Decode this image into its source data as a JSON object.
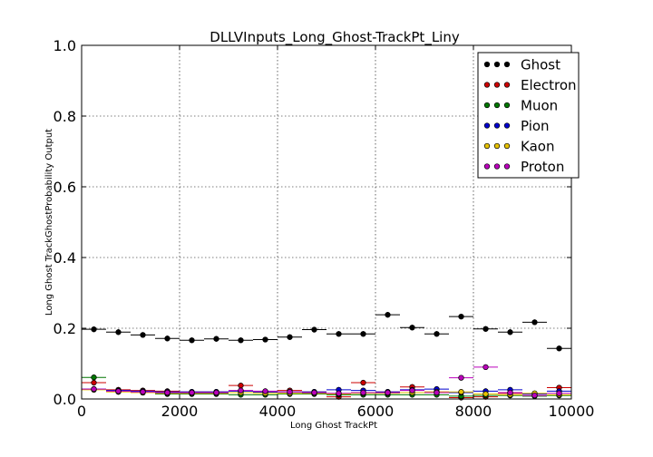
{
  "chart_data": {
    "type": "scatter",
    "title": "DLLVInputs_Long_Ghost-TrackPt_Liny",
    "xlabel": "Long Ghost TrackPt",
    "ylabel": "Long Ghost TrackGhostProbability Output",
    "xlim": [
      0,
      10000
    ],
    "ylim": [
      0,
      1.0
    ],
    "x_ticks": [
      "0",
      "2000",
      "4000",
      "6000",
      "8000",
      "10000"
    ],
    "y_ticks": [
      "0.0",
      "0.2",
      "0.4",
      "0.6",
      "0.8",
      "1.0"
    ],
    "grid": true,
    "legend_position": "top-right",
    "bin_centers": [
      250,
      750,
      1250,
      1750,
      2250,
      2750,
      3250,
      3750,
      4250,
      4750,
      5250,
      5750,
      6250,
      6750,
      7250,
      7750,
      8250,
      8750,
      9250,
      9750
    ],
    "bin_half_width": 250,
    "series": [
      {
        "name": "Ghost",
        "color": "#000000",
        "values": [
          0.197,
          0.189,
          0.181,
          0.171,
          0.166,
          0.17,
          0.166,
          0.168,
          0.175,
          0.196,
          0.184,
          0.184,
          0.238,
          0.202,
          0.184,
          0.233,
          0.198,
          0.189,
          0.217,
          0.143
        ]
      },
      {
        "name": "Electron",
        "color": "#cc0000",
        "values": [
          0.046,
          0.026,
          0.024,
          0.022,
          0.02,
          0.02,
          0.038,
          0.02,
          0.024,
          0.02,
          0.006,
          0.046,
          0.02,
          0.034,
          0.02,
          0.004,
          0.006,
          0.016,
          0.01,
          0.032
        ]
      },
      {
        "name": "Muon",
        "color": "#007700",
        "values": [
          0.061,
          0.022,
          0.018,
          0.014,
          0.014,
          0.014,
          0.012,
          0.012,
          0.014,
          0.014,
          0.012,
          0.012,
          0.012,
          0.012,
          0.012,
          0.008,
          0.01,
          0.01,
          0.008,
          0.01
        ]
      },
      {
        "name": "Pion",
        "color": "#0000cc",
        "values": [
          0.028,
          0.024,
          0.022,
          0.02,
          0.02,
          0.02,
          0.022,
          0.02,
          0.02,
          0.02,
          0.026,
          0.024,
          0.02,
          0.026,
          0.028,
          0.018,
          0.022,
          0.026,
          0.014,
          0.022
        ]
      },
      {
        "name": "Kaon",
        "color": "#e6c200",
        "values": [
          0.026,
          0.02,
          0.018,
          0.016,
          0.016,
          0.016,
          0.018,
          0.016,
          0.016,
          0.016,
          0.014,
          0.016,
          0.016,
          0.018,
          0.02,
          0.02,
          0.014,
          0.012,
          0.016,
          0.012
        ]
      },
      {
        "name": "Proton",
        "color": "#bb00bb",
        "values": [
          0.028,
          0.022,
          0.02,
          0.018,
          0.018,
          0.018,
          0.024,
          0.022,
          0.02,
          0.018,
          0.016,
          0.018,
          0.018,
          0.024,
          0.018,
          0.06,
          0.09,
          0.018,
          0.01,
          0.016
        ]
      }
    ]
  }
}
